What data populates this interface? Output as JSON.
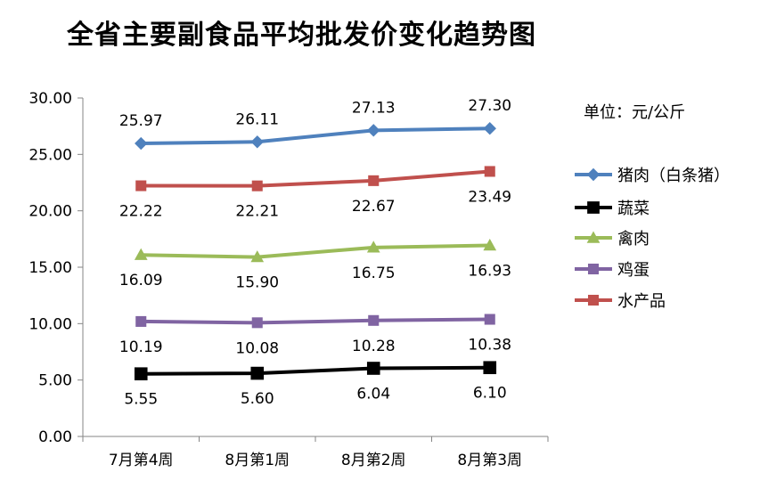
{
  "chart_data": {
    "type": "line",
    "title": "全省主要副食品平均批发价变化趋势图",
    "unit_note": "单位：元/公斤",
    "categories": [
      "7月第4周",
      "8月第1周",
      "8月第2周",
      "8月第3周"
    ],
    "ylim": [
      0,
      30
    ],
    "y_ticks": [
      "0.00",
      "5.00",
      "10.00",
      "15.00",
      "20.00",
      "25.00",
      "30.00"
    ],
    "grid": false,
    "legend_position": "right",
    "series": [
      {
        "name": "猪肉（白条猪）",
        "values": [
          25.97,
          26.11,
          27.13,
          27.3
        ],
        "labels": [
          "25.97",
          "26.11",
          "27.13",
          "27.30"
        ],
        "color": "#4F81BD",
        "marker": "diamond",
        "label_pos": "above"
      },
      {
        "name": "蔬菜",
        "values": [
          5.55,
          5.6,
          6.04,
          6.1
        ],
        "labels": [
          "5.55",
          "5.60",
          "6.04",
          "6.10"
        ],
        "color": "#000000",
        "marker": "square",
        "label_pos": "below"
      },
      {
        "name": "禽肉",
        "values": [
          16.09,
          15.9,
          16.75,
          16.93
        ],
        "labels": [
          "16.09",
          "15.90",
          "16.75",
          "16.93"
        ],
        "color": "#9BBB59",
        "marker": "triangle",
        "label_pos": "below"
      },
      {
        "name": "鸡蛋",
        "values": [
          10.19,
          10.08,
          10.28,
          10.38
        ],
        "labels": [
          "10.19",
          "10.08",
          "10.28",
          "10.38"
        ],
        "color": "#8064A2",
        "marker": "square",
        "label_pos": "below"
      },
      {
        "name": "水产品",
        "values": [
          22.22,
          22.21,
          22.67,
          23.49
        ],
        "labels": [
          "22.22",
          "22.21",
          "22.67",
          "23.49"
        ],
        "color": "#C0504D",
        "marker": "square",
        "label_pos": "below"
      }
    ]
  }
}
